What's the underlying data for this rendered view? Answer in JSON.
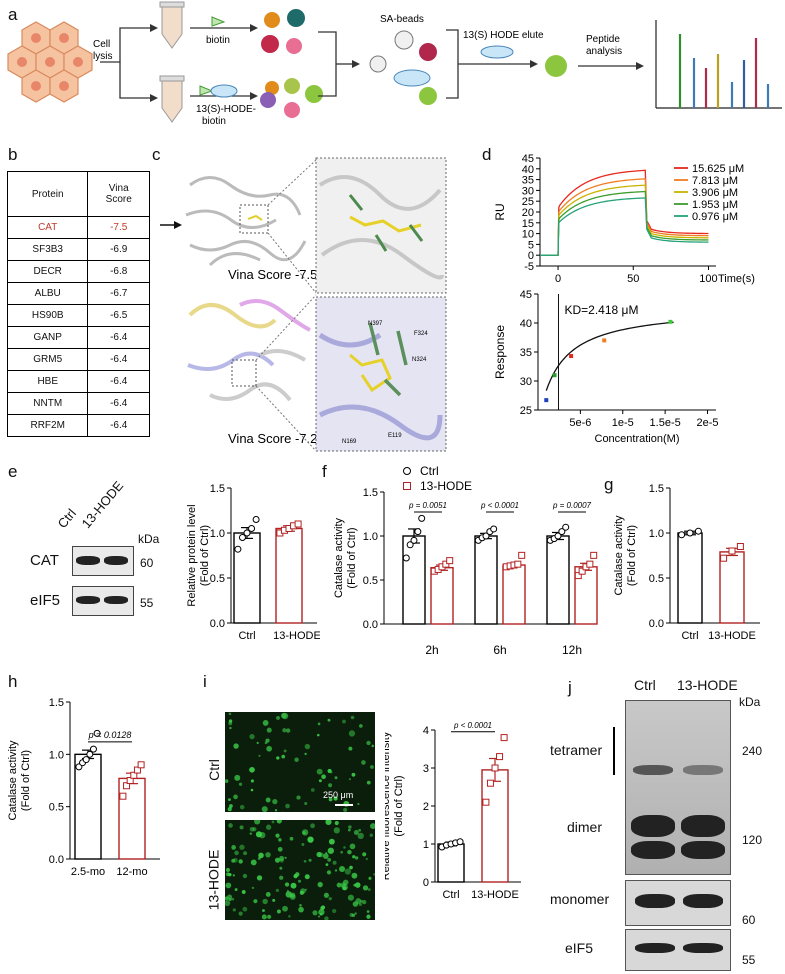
{
  "panel_letters": [
    "a",
    "b",
    "c",
    "d",
    "e",
    "f",
    "g",
    "h",
    "i",
    "j"
  ],
  "panel_a": {
    "cell_lysis": [
      "Cell",
      "lysis"
    ],
    "biotin": "biotin",
    "probe": [
      "13(S)-HODE-",
      "biotin"
    ],
    "sa_beads": "SA-beads",
    "elute": "13(S) HODE elute",
    "peptide": [
      "Peptide",
      "analysis"
    ]
  },
  "panel_b": {
    "header": [
      "Protein",
      "Vina",
      "Score"
    ],
    "rows": [
      {
        "protein": "CAT",
        "score": "-7.5",
        "highlight": "#c0392b"
      },
      {
        "protein": "SF3B3",
        "score": "-6.9"
      },
      {
        "protein": "DECR",
        "score": "-6.8"
      },
      {
        "protein": "ALBU",
        "score": "-6.7"
      },
      {
        "protein": "HS90B",
        "score": "-6.5"
      },
      {
        "protein": "GANP",
        "score": "-6.4"
      },
      {
        "protein": "GRM5",
        "score": "-6.4"
      },
      {
        "protein": "HBE",
        "score": "-6.4"
      },
      {
        "protein": "NNTM",
        "score": "-6.4"
      },
      {
        "protein": "RRF2M",
        "score": "-6.4"
      }
    ]
  },
  "panel_c": {
    "score_top": "Vina Score  -7.5",
    "score_bottom": "Vina Score  -7.2",
    "residues_bottom": [
      "N397",
      "F324",
      "N324",
      "E119",
      "N169"
    ]
  },
  "panel_d": {
    "ylabel_top": "RU",
    "xlabel_top": "Time(s)",
    "yticks_top": [
      "45",
      "40",
      "35",
      "30",
      "25",
      "20",
      "15",
      "10",
      "5",
      "0",
      "-5"
    ],
    "xticks_top": [
      "0",
      "50",
      "100"
    ],
    "legend": [
      {
        "name": "15.625 μM",
        "color": "#e8281e"
      },
      {
        "name": "7.813 μM",
        "color": "#f07d22"
      },
      {
        "name": "3.906 μM",
        "color": "#c8b400"
      },
      {
        "name": "1.953 μM",
        "color": "#3e9d2f"
      },
      {
        "name": "0.976 μM",
        "color": "#27a37a"
      }
    ],
    "kd_label": "KD=2.418 μM",
    "ylabel_bottom": "Response",
    "xlabel_bottom": "Concentration(M)",
    "yticks_bottom": [
      "45",
      "40",
      "35",
      "30",
      "25"
    ],
    "xticks_bottom": [
      "5e-6",
      "1e-5",
      "1.5e-5",
      "2e-5"
    ]
  },
  "panel_e": {
    "title": "CAT",
    "lanes": [
      "Ctrl",
      "13-HODE"
    ],
    "kda_label": "kDa",
    "blots": [
      {
        "name": "CAT",
        "kda": "60"
      },
      {
        "name": "eIF5",
        "kda": "55"
      }
    ],
    "ylabel": [
      "Relative protein level",
      "(Fold of Ctrl)"
    ],
    "yticks": [
      "1.5",
      "1.0",
      "0.5",
      "0.0"
    ]
  },
  "panel_f": {
    "legend": [
      {
        "name": "Ctrl",
        "color": "#000000"
      },
      {
        "name": "13-HODE",
        "color": "#b22222"
      }
    ],
    "ylabel": [
      "Catalase activity",
      "(Fold of Ctrl)"
    ],
    "yticks": [
      "1.5",
      "1.0",
      "0.5",
      "0.0"
    ],
    "groups": [
      "2h",
      "6h",
      "12h"
    ],
    "pvalues": [
      "p = 0.0051",
      "p < 0.0001",
      "p = 0.0007"
    ]
  },
  "panel_g": {
    "ylabel": [
      "Catalase activity",
      "(Fold of Ctrl)"
    ],
    "yticks": [
      "1.5",
      "1.0",
      "0.5",
      "0.0"
    ],
    "categories": [
      "Ctrl",
      "13-HODE"
    ]
  },
  "panel_h": {
    "ylabel": [
      "Catalase activity",
      "(Fold of Ctrl)"
    ],
    "yticks": [
      "1.5",
      "1.0",
      "0.5",
      "0.0"
    ],
    "categories": [
      "2.5-mo",
      "12-mo"
    ],
    "pvalue": "p = 0.0128"
  },
  "panel_i": {
    "rows": [
      "Ctrl",
      "13-HODE"
    ],
    "scale": "250 μm",
    "ylabel": [
      "Relative fluorescence intensity",
      "(Fold of Ctrl)"
    ],
    "yticks": [
      "4",
      "3",
      "2",
      "1",
      "0"
    ],
    "categories": [
      "Ctrl",
      "13-HODE"
    ],
    "pvalue": "p < 0.0001"
  },
  "panel_j": {
    "lanes": [
      "Ctrl",
      "13-HODE"
    ],
    "kda_label": "kDa",
    "bands": [
      {
        "name": "tetramer",
        "kda": "240"
      },
      {
        "name": "dimer",
        "kda": "120"
      },
      {
        "name": "monomer",
        "kda": "60"
      },
      {
        "name": "eIF5",
        "kda": "55"
      }
    ]
  },
  "chart_data": [
    {
      "id": "d-sensorgram",
      "type": "line",
      "xlabel": "Time(s)",
      "ylabel": "RU",
      "xlim": [
        -12,
        105
      ],
      "ylim": [
        -5,
        45
      ],
      "series": [
        {
          "name": "15.625 μM",
          "plateau": 40,
          "post": 10
        },
        {
          "name": "7.813 μM",
          "plateau": 36,
          "post": 9
        },
        {
          "name": "3.906 μM",
          "plateau": 33,
          "post": 8
        },
        {
          "name": "1.953 μM",
          "plateau": 30,
          "post": 7
        },
        {
          "name": "0.976 μM",
          "plateau": 27,
          "post": 6
        }
      ]
    },
    {
      "id": "d-affinity",
      "type": "scatter",
      "xlabel": "Concentration(M)",
      "ylabel": "Response",
      "xlim": [
        0,
        2.1e-05
      ],
      "ylim": [
        25,
        45
      ],
      "x": [
        9.76e-07,
        1.953e-06,
        3.906e-06,
        7.813e-06,
        1.5625e-05
      ],
      "y": [
        26.7,
        31.0,
        34.3,
        37.0,
        40.2
      ],
      "point_colors": [
        "#1f3fbf",
        "#2a9d2a",
        "#e0281e",
        "#f07d22",
        "#3ecb3e"
      ],
      "kd": 2.418e-06
    },
    {
      "id": "e-protein",
      "type": "bar",
      "categories": [
        "Ctrl",
        "13-HODE"
      ],
      "values": [
        1.0,
        1.05
      ],
      "errors": [
        0.06,
        0.03
      ],
      "points": [
        [
          0.82,
          0.95,
          1.0,
          1.05,
          1.15
        ],
        [
          1.0,
          1.03,
          1.05,
          1.08,
          1.1
        ]
      ],
      "ylim": [
        0,
        1.5
      ]
    },
    {
      "id": "f-activity",
      "type": "bar",
      "categories": [
        "2h",
        "6h",
        "12h"
      ],
      "series": [
        {
          "name": "Ctrl",
          "values": [
            1.0,
            1.0,
            1.0
          ],
          "errors": [
            0.08,
            0.03,
            0.04
          ],
          "points": [
            [
              0.75,
              0.9,
              0.95,
              1.05,
              1.2
            ],
            [
              0.95,
              0.98,
              1.0,
              1.05,
              1.08
            ],
            [
              0.95,
              0.97,
              1.0,
              1.05,
              1.1
            ]
          ]
        },
        {
          "name": "13-HODE",
          "values": [
            0.64,
            0.67,
            0.65
          ],
          "errors": [
            0.03,
            0.02,
            0.04
          ],
          "points": [
            [
              0.6,
              0.62,
              0.65,
              0.68,
              0.72
            ],
            [
              0.65,
              0.66,
              0.67,
              0.68,
              0.78
            ],
            [
              0.55,
              0.6,
              0.65,
              0.68,
              0.78
            ]
          ]
        }
      ],
      "ylim": [
        0,
        1.5
      ]
    },
    {
      "id": "g-activity",
      "type": "bar",
      "categories": [
        "Ctrl",
        "13-HODE"
      ],
      "values": [
        1.0,
        0.79
      ],
      "errors": [
        0.02,
        0.04
      ],
      "points": [
        [
          0.98,
          1.0,
          1.02
        ],
        [
          0.72,
          0.8,
          0.85
        ]
      ],
      "ylim": [
        0,
        1.5
      ]
    },
    {
      "id": "h-activity",
      "type": "bar",
      "categories": [
        "2.5-mo",
        "12-mo"
      ],
      "values": [
        1.0,
        0.77
      ],
      "errors": [
        0.04,
        0.05
      ],
      "points": [
        [
          0.88,
          0.92,
          0.95,
          1.0,
          1.05,
          1.2
        ],
        [
          0.6,
          0.7,
          0.75,
          0.8,
          0.85,
          0.9
        ]
      ],
      "ylim": [
        0,
        1.5
      ]
    },
    {
      "id": "i-fluorescence",
      "type": "bar",
      "categories": [
        "Ctrl",
        "13-HODE"
      ],
      "values": [
        1.0,
        2.95
      ],
      "errors": [
        0.05,
        0.3
      ],
      "points": [
        [
          0.92,
          0.97,
          1.0,
          1.03,
          1.06
        ],
        [
          2.1,
          2.6,
          3.0,
          3.3,
          3.8
        ]
      ],
      "ylim": [
        0,
        4
      ]
    }
  ]
}
